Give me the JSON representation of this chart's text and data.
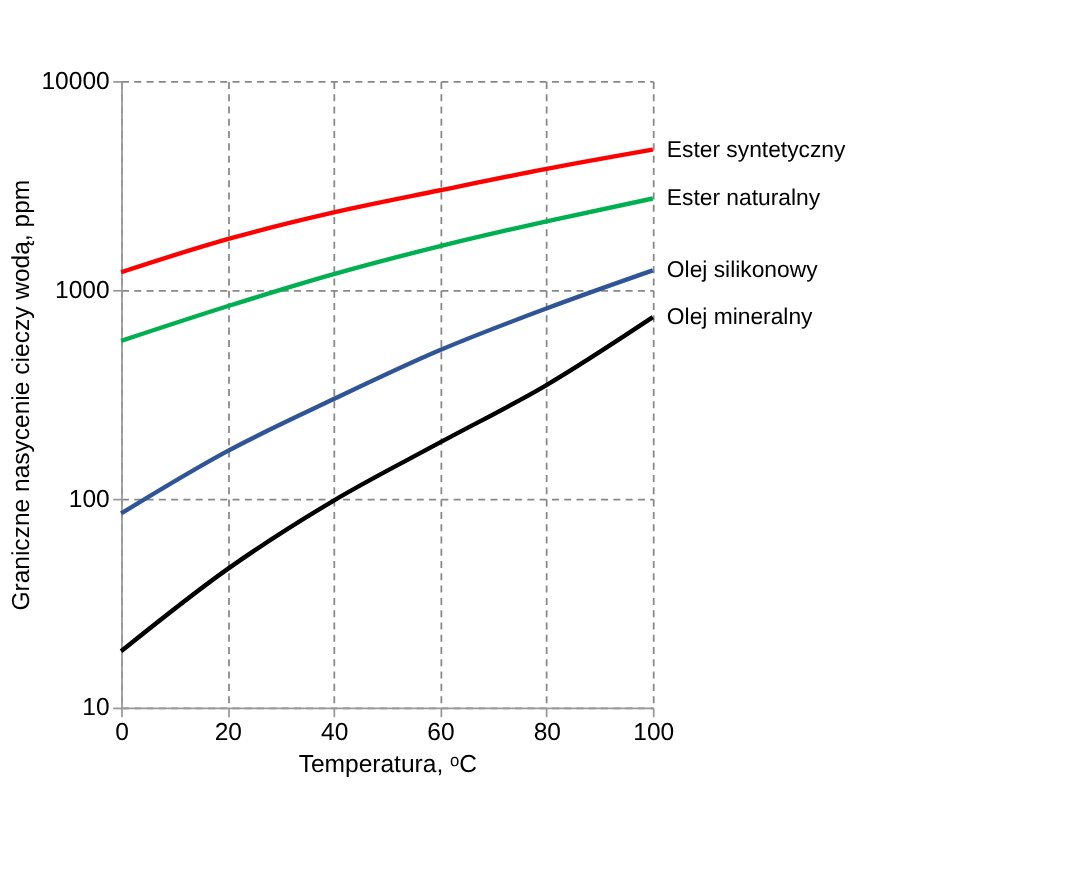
{
  "chart_data": {
    "type": "line",
    "xlabel": "Temperatura, ᵒC",
    "ylabel": "Graniczne nasycenie cieczy wodą, ppm",
    "x": [
      0,
      20,
      40,
      60,
      80,
      100
    ],
    "log": true,
    "grid": true,
    "legend": false,
    "marker": "none",
    "line_style": "solid",
    "xlim": [
      0,
      100
    ],
    "xticks": [
      0,
      20,
      40,
      60,
      80,
      100
    ],
    "ylim": [
      10,
      10000
    ],
    "yticks": [
      10,
      100,
      1000,
      10000
    ],
    "series": [
      {
        "name": "Ester syntetyczny",
        "color": "#ff0000",
        "values": [
          1215,
          1750,
          2350,
          3000,
          3800,
          4700
        ]
      },
      {
        "name": "Ester naturalny",
        "color": "#00b050",
        "values": [
          570,
          835,
          1190,
          1620,
          2130,
          2740
        ]
      },
      {
        "name": "Olej silikonowy",
        "color": "#2f5597",
        "values": [
          85,
          169,
          300,
          515,
          815,
          1240
        ]
      },
      {
        "name": "Olej mineralny",
        "color": "#000000",
        "values": [
          18.6,
          46,
          98,
          186,
          350,
          740
        ]
      }
    ]
  }
}
